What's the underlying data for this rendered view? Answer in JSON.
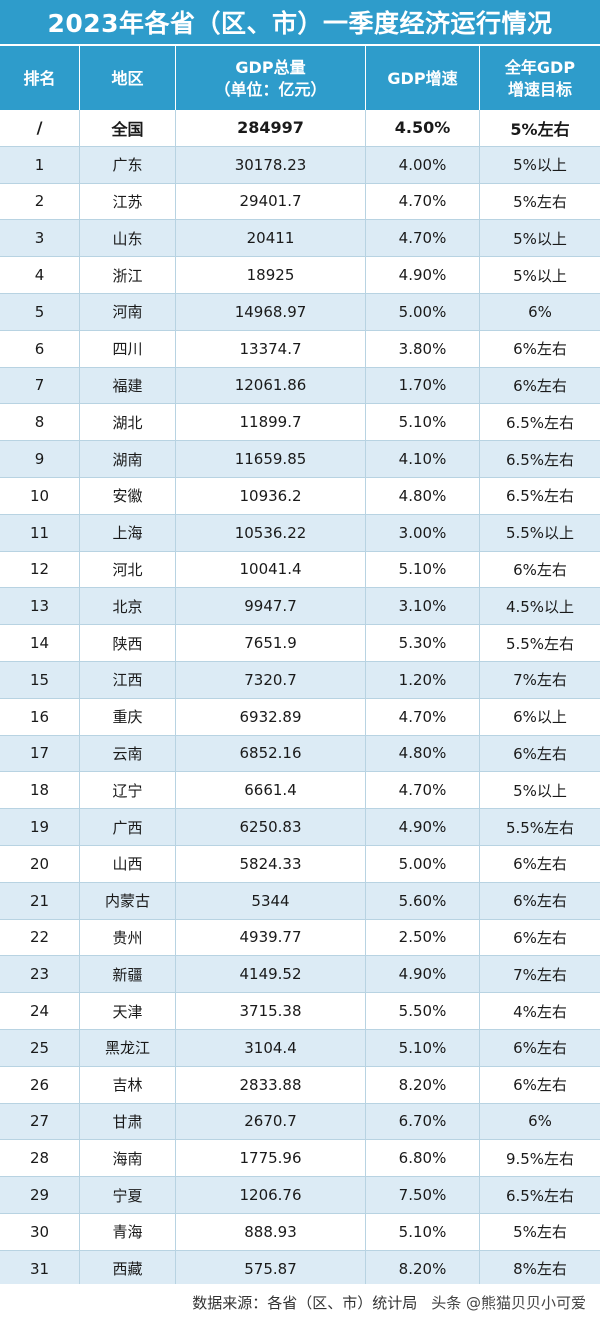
{
  "title": "2023年各省（区、市）一季度经济运行情况",
  "headers": {
    "rank": "排名",
    "region": "地区",
    "gdp_line1": "GDP总量",
    "gdp_line2": "（单位：亿元）",
    "growth": "GDP增速",
    "target_line1": "全年GDP",
    "target_line2": "增速目标"
  },
  "total_row": {
    "rank": "/",
    "region": "全国",
    "gdp": "284997",
    "growth": "4.50%",
    "target": "5%左右"
  },
  "rows": [
    {
      "rank": "1",
      "region": "广东",
      "gdp": "30178.23",
      "growth": "4.00%",
      "target": "5%以上"
    },
    {
      "rank": "2",
      "region": "江苏",
      "gdp": "29401.7",
      "growth": "4.70%",
      "target": "5%左右"
    },
    {
      "rank": "3",
      "region": "山东",
      "gdp": "20411",
      "growth": "4.70%",
      "target": "5%以上"
    },
    {
      "rank": "4",
      "region": "浙江",
      "gdp": "18925",
      "growth": "4.90%",
      "target": "5%以上"
    },
    {
      "rank": "5",
      "region": "河南",
      "gdp": "14968.97",
      "growth": "5.00%",
      "target": "6%"
    },
    {
      "rank": "6",
      "region": "四川",
      "gdp": "13374.7",
      "growth": "3.80%",
      "target": "6%左右"
    },
    {
      "rank": "7",
      "region": "福建",
      "gdp": "12061.86",
      "growth": "1.70%",
      "target": "6%左右"
    },
    {
      "rank": "8",
      "region": "湖北",
      "gdp": "11899.7",
      "growth": "5.10%",
      "target": "6.5%左右"
    },
    {
      "rank": "9",
      "region": "湖南",
      "gdp": "11659.85",
      "growth": "4.10%",
      "target": "6.5%左右"
    },
    {
      "rank": "10",
      "region": "安徽",
      "gdp": "10936.2",
      "growth": "4.80%",
      "target": "6.5%左右"
    },
    {
      "rank": "11",
      "region": "上海",
      "gdp": "10536.22",
      "growth": "3.00%",
      "target": "5.5%以上"
    },
    {
      "rank": "12",
      "region": "河北",
      "gdp": "10041.4",
      "growth": "5.10%",
      "target": "6%左右"
    },
    {
      "rank": "13",
      "region": "北京",
      "gdp": "9947.7",
      "growth": "3.10%",
      "target": "4.5%以上"
    },
    {
      "rank": "14",
      "region": "陕西",
      "gdp": "7651.9",
      "growth": "5.30%",
      "target": "5.5%左右"
    },
    {
      "rank": "15",
      "region": "江西",
      "gdp": "7320.7",
      "growth": "1.20%",
      "target": "7%左右"
    },
    {
      "rank": "16",
      "region": "重庆",
      "gdp": "6932.89",
      "growth": "4.70%",
      "target": "6%以上"
    },
    {
      "rank": "17",
      "region": "云南",
      "gdp": "6852.16",
      "growth": "4.80%",
      "target": "6%左右"
    },
    {
      "rank": "18",
      "region": "辽宁",
      "gdp": "6661.4",
      "growth": "4.70%",
      "target": "5%以上"
    },
    {
      "rank": "19",
      "region": "广西",
      "gdp": "6250.83",
      "growth": "4.90%",
      "target": "5.5%左右"
    },
    {
      "rank": "20",
      "region": "山西",
      "gdp": "5824.33",
      "growth": "5.00%",
      "target": "6%左右"
    },
    {
      "rank": "21",
      "region": "内蒙古",
      "gdp": "5344",
      "growth": "5.60%",
      "target": "6%左右"
    },
    {
      "rank": "22",
      "region": "贵州",
      "gdp": "4939.77",
      "growth": "2.50%",
      "target": "6%左右"
    },
    {
      "rank": "23",
      "region": "新疆",
      "gdp": "4149.52",
      "growth": "4.90%",
      "target": "7%左右"
    },
    {
      "rank": "24",
      "region": "天津",
      "gdp": "3715.38",
      "growth": "5.50%",
      "target": "4%左右"
    },
    {
      "rank": "25",
      "region": "黑龙江",
      "gdp": "3104.4",
      "growth": "5.10%",
      "target": "6%左右"
    },
    {
      "rank": "26",
      "region": "吉林",
      "gdp": "2833.88",
      "growth": "8.20%",
      "target": "6%左右"
    },
    {
      "rank": "27",
      "region": "甘肃",
      "gdp": "2670.7",
      "growth": "6.70%",
      "target": "6%"
    },
    {
      "rank": "28",
      "region": "海南",
      "gdp": "1775.96",
      "growth": "6.80%",
      "target": "9.5%左右"
    },
    {
      "rank": "29",
      "region": "宁夏",
      "gdp": "1206.76",
      "growth": "7.50%",
      "target": "6.5%左右"
    },
    {
      "rank": "30",
      "region": "青海",
      "gdp": "888.93",
      "growth": "5.10%",
      "target": "5%左右"
    },
    {
      "rank": "31",
      "region": "西藏",
      "gdp": "575.87",
      "growth": "8.20%",
      "target": "8%左右"
    }
  ],
  "footer": {
    "source": "数据来源：各省（区、市）统计局",
    "brand": "头条 @熊猫贝贝小可爱"
  },
  "colors": {
    "header_bg": "#2e9ccb",
    "stripe_bg": "#dcebf5",
    "grid_line": "#b8d3e2"
  }
}
